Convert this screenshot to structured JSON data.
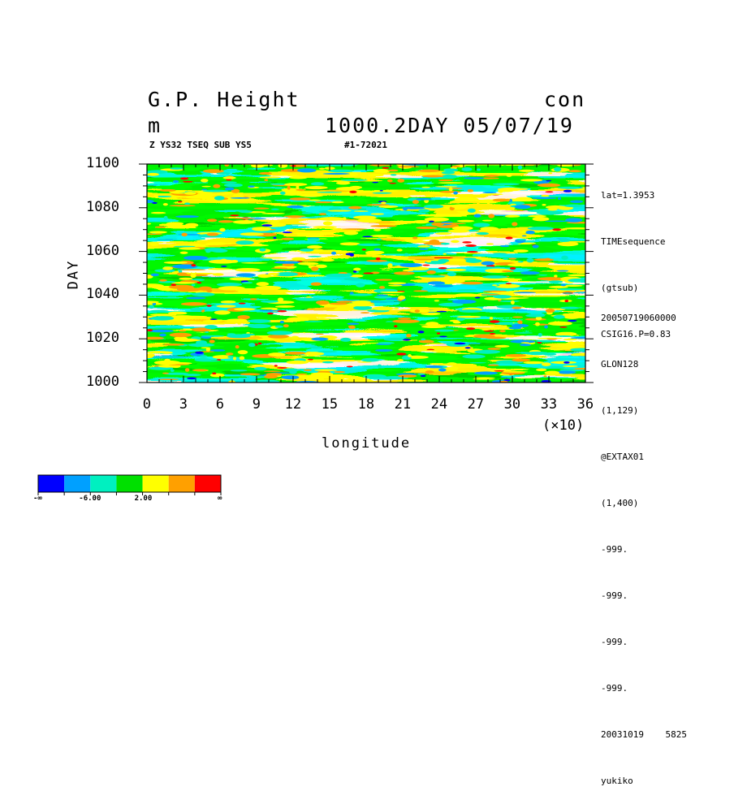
{
  "header": {
    "title": "G.P. Height",
    "kind": "con",
    "unit": "m",
    "level_info": "1000.2DAY 05/07/19",
    "subtitle_left": "Z YS32 TSEQ SUB YS5",
    "subtitle_right": "#1-72021"
  },
  "axes": {
    "xlabel": "longitude",
    "ylabel": "DAY",
    "x_multiplier": "(×10)",
    "x_ticks": [
      "0",
      "3",
      "6",
      "9",
      "12",
      "15",
      "18",
      "21",
      "24",
      "27",
      "30",
      "33",
      "36"
    ],
    "y_ticks": [
      "1100",
      "1080",
      "1060",
      "1040",
      "1020",
      "1000"
    ]
  },
  "meta_top": [
    "lat=1.3953",
    "TIMEsequence",
    "(gtsub)",
    "CSIG16.P=0.83"
  ],
  "meta_bottom": [
    "20050719060000",
    "GLON128",
    "(1,129)",
    "@EXTAX01",
    "(1,400)",
    "-999.",
    "-999.",
    "-999.",
    "-999."
  ],
  "meta_footer": {
    "date": "20031019",
    "id": "5825",
    "user": "yukiko"
  },
  "colorbar": {
    "colors": [
      "#0000ff",
      "#00a0ff",
      "#00f0c0",
      "#00e000",
      "#ffff00",
      "#ffa000",
      "#ff0000"
    ],
    "labels": [
      "-∞",
      "-6.00",
      "2.00",
      "∞"
    ]
  },
  "chart_data": {
    "type": "heatmap",
    "xlabel": "longitude",
    "ylabel": "DAY",
    "xlim": [
      0,
      360
    ],
    "ylim": [
      1000,
      1100
    ],
    "levels_colors": [
      "#0000ff",
      "#00a0ff",
      "#00f0c0",
      "#00e000",
      "#ffff00",
      "#ffa000",
      "#ff0000"
    ],
    "level_bounds_labeled": [
      -6.0,
      2.0
    ]
  }
}
